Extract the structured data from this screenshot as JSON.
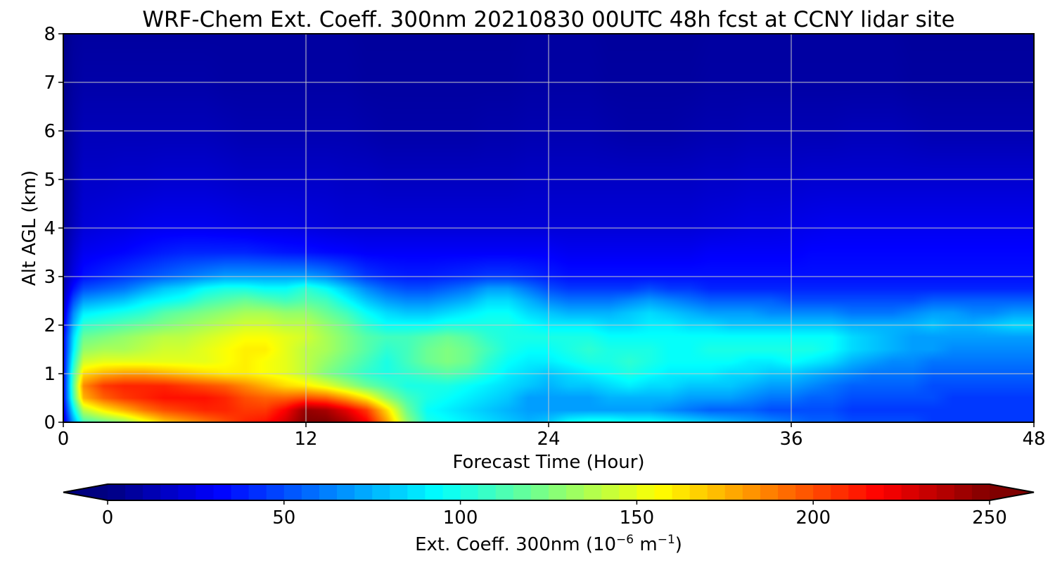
{
  "chart_data": {
    "type": "heatmap",
    "title": "WRF-Chem Ext. Coeff. 300nm  20210830 00UTC 48h fcst at CCNY lidar site",
    "xlabel": "Forecast Time (Hour)",
    "ylabel": "Alt AGL (km)",
    "xlim": [
      0,
      48
    ],
    "ylim": [
      0,
      8
    ],
    "x_ticks": [
      "0",
      "12",
      "24",
      "36",
      "48"
    ],
    "y_ticks": [
      "0",
      "1",
      "2",
      "3",
      "4",
      "5",
      "6",
      "7",
      "8"
    ],
    "grid": true,
    "colormap": "jet",
    "colorbar": {
      "label_main": "Ext. Coeff. 300nm  (10",
      "label_exp1": "−6",
      "label_mid": " m",
      "label_exp2": "−1",
      "label_end": ")",
      "range": [
        0,
        250
      ],
      "extend": "both",
      "ticks": [
        "0",
        "50",
        "100",
        "150",
        "200",
        "250"
      ]
    },
    "x_hours": [
      0,
      0.5,
      1,
      2,
      3,
      4,
      5,
      6,
      7,
      8,
      9,
      10,
      11,
      12,
      13,
      14,
      15,
      16,
      17,
      18,
      19,
      20,
      21,
      22,
      23,
      24,
      25,
      26,
      27,
      28,
      29,
      30,
      31,
      32,
      33,
      34,
      35,
      36,
      37,
      38,
      39,
      40,
      41,
      42,
      43,
      44,
      45,
      46,
      47,
      48
    ],
    "z_km": [
      0,
      0.25,
      0.5,
      0.75,
      1.0,
      1.25,
      1.5,
      1.75,
      2.0,
      2.25,
      2.5,
      2.75,
      3.0,
      3.5,
      4.0,
      5.0,
      6.0,
      7.0,
      8.0
    ],
    "values_by_level": [
      [
        20,
        70,
        110,
        120,
        130,
        150,
        170,
        180,
        190,
        200,
        210,
        215,
        230,
        250,
        250,
        240,
        220,
        180,
        130,
        100,
        95,
        90,
        85,
        80,
        75,
        80,
        95,
        100,
        100,
        95,
        95,
        90,
        85,
        80,
        75,
        70,
        65,
        60,
        55,
        55,
        50,
        50,
        50,
        50,
        45,
        45,
        45,
        45,
        45,
        45
      ],
      [
        25,
        90,
        140,
        160,
        175,
        190,
        200,
        205,
        210,
        210,
        205,
        205,
        220,
        245,
        240,
        225,
        205,
        165,
        120,
        95,
        90,
        85,
        80,
        75,
        70,
        70,
        70,
        70,
        70,
        70,
        70,
        65,
        60,
        55,
        55,
        55,
        50,
        50,
        50,
        50,
        45,
        45,
        45,
        45,
        45,
        45,
        45,
        45,
        45,
        45
      ],
      [
        30,
        110,
        175,
        195,
        205,
        210,
        215,
        215,
        215,
        210,
        200,
        195,
        195,
        200,
        195,
        180,
        160,
        130,
        110,
        100,
        95,
        90,
        85,
        80,
        70,
        70,
        70,
        70,
        75,
        75,
        75,
        75,
        70,
        70,
        70,
        65,
        60,
        60,
        55,
        55,
        50,
        50,
        50,
        50,
        50,
        45,
        45,
        45,
        45,
        45
      ],
      [
        30,
        115,
        185,
        205,
        210,
        210,
        210,
        205,
        200,
        195,
        185,
        175,
        165,
        160,
        150,
        135,
        120,
        110,
        100,
        100,
        100,
        95,
        90,
        85,
        80,
        75,
        80,
        80,
        85,
        90,
        85,
        85,
        80,
        80,
        80,
        75,
        70,
        70,
        65,
        60,
        55,
        55,
        55,
        55,
        50,
        50,
        50,
        50,
        50,
        50
      ],
      [
        30,
        110,
        165,
        175,
        180,
        180,
        175,
        170,
        165,
        160,
        160,
        155,
        150,
        140,
        125,
        115,
        105,
        100,
        105,
        110,
        115,
        110,
        100,
        90,
        85,
        80,
        85,
        90,
        95,
        100,
        95,
        90,
        90,
        90,
        85,
        85,
        80,
        80,
        75,
        70,
        65,
        60,
        60,
        60,
        55,
        55,
        55,
        55,
        55,
        55
      ],
      [
        30,
        100,
        145,
        150,
        150,
        150,
        150,
        150,
        150,
        155,
        160,
        155,
        150,
        140,
        130,
        120,
        110,
        100,
        110,
        120,
        125,
        120,
        105,
        95,
        90,
        90,
        95,
        100,
        100,
        105,
        100,
        95,
        95,
        95,
        95,
        90,
        90,
        95,
        90,
        85,
        75,
        70,
        65,
        65,
        60,
        60,
        60,
        60,
        60,
        60
      ],
      [
        30,
        90,
        130,
        135,
        135,
        140,
        145,
        145,
        150,
        155,
        160,
        160,
        150,
        140,
        135,
        125,
        115,
        105,
        110,
        120,
        125,
        120,
        110,
        100,
        95,
        95,
        100,
        105,
        100,
        100,
        100,
        95,
        95,
        100,
        100,
        100,
        100,
        100,
        100,
        95,
        85,
        80,
        75,
        70,
        70,
        65,
        65,
        65,
        65,
        65
      ],
      [
        30,
        85,
        120,
        125,
        130,
        135,
        140,
        140,
        145,
        150,
        155,
        155,
        150,
        145,
        135,
        125,
        115,
        110,
        110,
        115,
        120,
        115,
        105,
        100,
        100,
        100,
        100,
        100,
        95,
        95,
        95,
        95,
        95,
        95,
        95,
        95,
        95,
        95,
        95,
        95,
        85,
        80,
        75,
        70,
        70,
        70,
        70,
        70,
        70,
        70
      ],
      [
        25,
        75,
        105,
        110,
        115,
        120,
        125,
        130,
        135,
        140,
        145,
        145,
        140,
        140,
        130,
        120,
        105,
        95,
        95,
        95,
        100,
        100,
        100,
        100,
        95,
        90,
        90,
        90,
        85,
        85,
        90,
        90,
        85,
        85,
        80,
        80,
        80,
        80,
        80,
        80,
        75,
        75,
        75,
        75,
        80,
        75,
        75,
        80,
        85,
        85
      ],
      [
        20,
        65,
        90,
        95,
        100,
        105,
        115,
        120,
        125,
        130,
        135,
        135,
        130,
        130,
        120,
        110,
        95,
        85,
        80,
        80,
        85,
        90,
        95,
        95,
        85,
        80,
        75,
        75,
        75,
        80,
        85,
        80,
        75,
        70,
        70,
        70,
        65,
        65,
        65,
        65,
        60,
        60,
        60,
        65,
        70,
        70,
        65,
        65,
        70,
        70
      ],
      [
        15,
        50,
        70,
        75,
        80,
        90,
        95,
        100,
        110,
        115,
        120,
        115,
        110,
        115,
        110,
        95,
        80,
        70,
        65,
        65,
        70,
        75,
        85,
        85,
        75,
        65,
        60,
        60,
        60,
        65,
        70,
        65,
        60,
        55,
        55,
        55,
        55,
        50,
        50,
        50,
        50,
        50,
        50,
        50,
        55,
        55,
        55,
        55,
        55,
        55
      ],
      [
        12,
        35,
        50,
        55,
        60,
        70,
        80,
        85,
        95,
        100,
        100,
        95,
        95,
        105,
        95,
        80,
        65,
        55,
        50,
        50,
        55,
        60,
        70,
        70,
        60,
        50,
        45,
        45,
        45,
        45,
        50,
        45,
        45,
        40,
        40,
        40,
        40,
        40,
        40,
        40,
        40,
        40,
        40,
        40,
        40,
        40,
        40,
        40,
        40,
        40
      ],
      [
        10,
        25,
        35,
        40,
        45,
        50,
        55,
        60,
        65,
        70,
        70,
        70,
        70,
        70,
        65,
        55,
        45,
        40,
        38,
        38,
        40,
        42,
        45,
        45,
        42,
        38,
        35,
        35,
        35,
        35,
        35,
        35,
        35,
        35,
        35,
        35,
        35,
        35,
        35,
        35,
        35,
        35,
        35,
        35,
        35,
        35,
        35,
        35,
        35,
        35
      ],
      [
        8,
        20,
        28,
        30,
        32,
        35,
        38,
        40,
        40,
        40,
        40,
        38,
        36,
        35,
        33,
        32,
        30,
        30,
        30,
        30,
        30,
        30,
        30,
        30,
        30,
        30,
        28,
        28,
        28,
        28,
        28,
        28,
        28,
        30,
        30,
        30,
        30,
        30,
        32,
        32,
        32,
        32,
        32,
        32,
        32,
        32,
        32,
        32,
        32,
        32
      ],
      [
        6,
        15,
        22,
        24,
        25,
        27,
        28,
        28,
        28,
        27,
        26,
        25,
        25,
        24,
        23,
        22,
        22,
        22,
        22,
        22,
        22,
        22,
        22,
        22,
        22,
        22,
        22,
        22,
        22,
        22,
        22,
        22,
        22,
        23,
        24,
        25,
        25,
        26,
        27,
        28,
        28,
        28,
        28,
        28,
        28,
        28,
        28,
        28,
        28,
        28
      ],
      [
        5,
        12,
        18,
        18,
        19,
        19,
        20,
        20,
        20,
        19,
        18,
        18,
        18,
        18,
        18,
        17,
        17,
        16,
        16,
        16,
        16,
        16,
        16,
        16,
        17,
        17,
        17,
        17,
        17,
        17,
        17,
        17,
        17,
        18,
        18,
        19,
        19,
        19,
        20,
        20,
        20,
        20,
        20,
        20,
        20,
        20,
        20,
        20,
        20,
        20
      ],
      [
        4,
        10,
        14,
        14,
        14,
        14,
        14,
        14,
        14,
        13,
        12,
        12,
        12,
        12,
        12,
        12,
        11,
        10,
        10,
        10,
        10,
        10,
        11,
        11,
        12,
        12,
        12,
        12,
        11,
        10,
        10,
        10,
        11,
        12,
        12,
        13,
        13,
        13,
        13,
        13,
        14,
        14,
        14,
        13,
        12,
        12,
        12,
        12,
        12,
        12
      ],
      [
        3,
        8,
        10,
        10,
        10,
        10,
        10,
        10,
        10,
        9,
        9,
        9,
        9,
        9,
        9,
        9,
        8,
        8,
        8,
        8,
        8,
        8,
        8,
        8,
        9,
        9,
        9,
        9,
        8,
        8,
        8,
        8,
        8,
        9,
        9,
        9,
        9,
        9,
        9,
        9,
        9,
        9,
        9,
        8,
        8,
        8,
        8,
        8,
        8,
        8
      ],
      [
        3,
        7,
        8,
        8,
        8,
        8,
        8,
        8,
        8,
        8,
        8,
        8,
        8,
        8,
        8,
        8,
        7,
        7,
        7,
        7,
        7,
        7,
        7,
        7,
        8,
        8,
        8,
        8,
        7,
        7,
        7,
        7,
        7,
        8,
        8,
        8,
        8,
        8,
        8,
        8,
        8,
        8,
        8,
        7,
        7,
        7,
        7,
        7,
        7,
        7
      ]
    ]
  }
}
